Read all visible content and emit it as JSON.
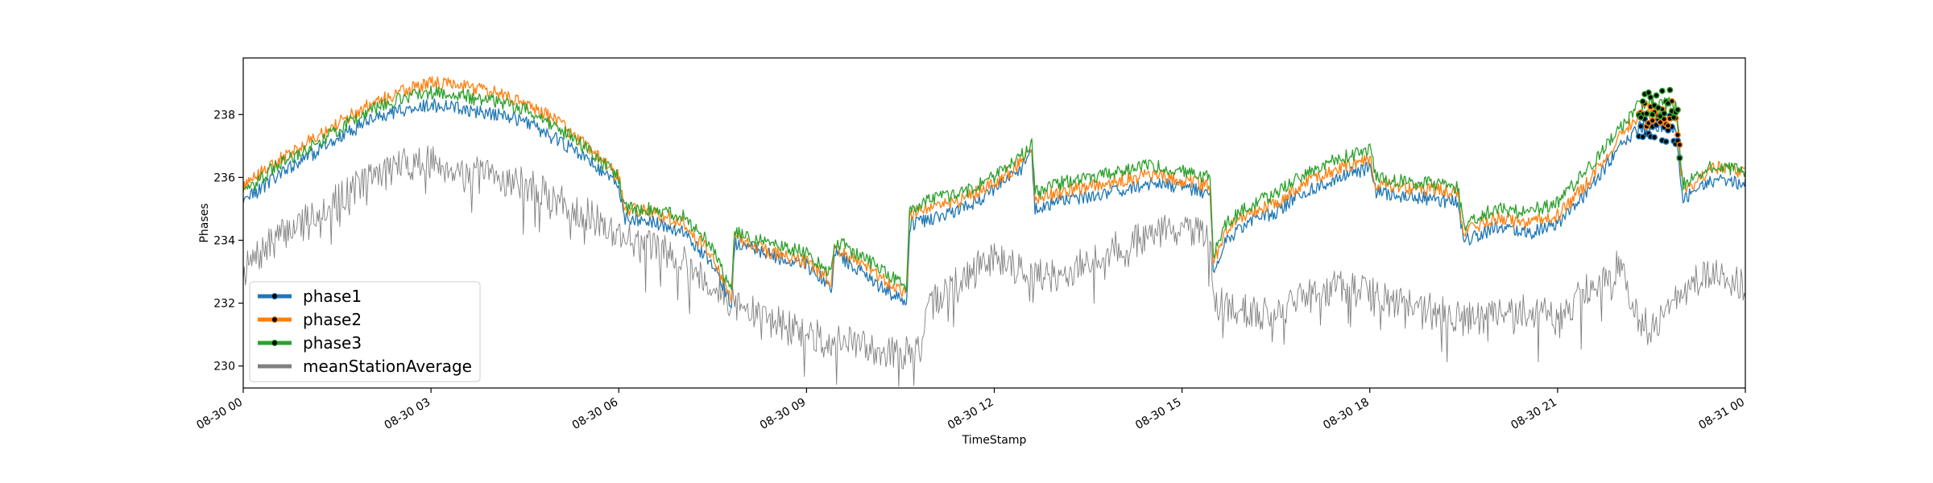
{
  "chart_data": {
    "type": "line",
    "xlabel": "TimeStamp",
    "ylabel": "Phases",
    "x_tick_labels": [
      "08-30 00",
      "08-30 03",
      "08-30 06",
      "08-30 09",
      "08-30 12",
      "08-30 15",
      "08-30 18",
      "08-30 21",
      "08-31 00"
    ],
    "y_ticks": [
      230,
      232,
      234,
      236,
      238
    ],
    "xlim_hours": [
      0,
      24
    ],
    "ylim": [
      229.3,
      239.8
    ],
    "grid": false,
    "legend_position": "lower-left",
    "series": [
      {
        "name": "phase1",
        "color": "#1f77b4",
        "hours": [
          0,
          0.5,
          1,
          1.5,
          2,
          2.5,
          3,
          3.5,
          4,
          4.5,
          5,
          5.5,
          6,
          6.1,
          6.5,
          7,
          7.5,
          7.8,
          7.85,
          8.2,
          8.6,
          9,
          9.4,
          9.45,
          9.8,
          10.2,
          10.6,
          10.65,
          11,
          11.5,
          12,
          12.5,
          12.6,
          12.65,
          13,
          13.5,
          14,
          14.5,
          15,
          15.45,
          15.5,
          15.7,
          16,
          16.5,
          17,
          17.5,
          18,
          18.1,
          18.5,
          19,
          19.4,
          19.5,
          19.8,
          20,
          20.5,
          21,
          21.5,
          22,
          22.3,
          22.6,
          22.9,
          23,
          23.5,
          24
        ],
        "values": [
          235.2,
          236,
          236.6,
          237.2,
          237.8,
          238.1,
          238.3,
          238.2,
          238.0,
          237.8,
          237.2,
          236.6,
          235.7,
          234.7,
          234.6,
          234.3,
          233.2,
          232.0,
          233.9,
          233.7,
          233.4,
          233.2,
          232.5,
          233.6,
          233.1,
          232.5,
          232.0,
          234.5,
          234.7,
          235.0,
          235.6,
          236.4,
          236.8,
          235.0,
          235.2,
          235.4,
          235.6,
          235.8,
          235.7,
          235.5,
          233.0,
          234.0,
          234.5,
          234.9,
          235.6,
          236.0,
          236.3,
          235.5,
          235.4,
          235.3,
          235.2,
          234.0,
          234.2,
          234.4,
          234.2,
          234.5,
          235.6,
          237.0,
          237.6,
          237.6,
          237.5,
          235.3,
          235.9,
          235.8
        ]
      },
      {
        "name": "phase2",
        "color": "#ff7f0e",
        "hours": [
          0,
          0.5,
          1,
          1.5,
          2,
          2.5,
          3,
          3.5,
          4,
          4.5,
          5,
          5.5,
          6,
          6.1,
          6.5,
          7,
          7.5,
          7.8,
          7.85,
          8.2,
          8.6,
          9,
          9.4,
          9.45,
          9.8,
          10.2,
          10.6,
          10.65,
          11,
          11.5,
          12,
          12.5,
          12.6,
          12.65,
          13,
          13.5,
          14,
          14.5,
          15,
          15.45,
          15.5,
          15.7,
          16,
          16.5,
          17,
          17.5,
          18,
          18.1,
          18.5,
          19,
          19.4,
          19.5,
          19.8,
          20,
          20.5,
          21,
          21.5,
          22,
          22.3,
          22.6,
          22.9,
          23,
          23.5,
          24
        ],
        "values": [
          235.7,
          236.5,
          237.1,
          237.7,
          238.3,
          238.7,
          239.0,
          238.9,
          238.7,
          238.4,
          237.8,
          237.0,
          236.0,
          235.0,
          234.9,
          234.6,
          233.5,
          232.1,
          234.1,
          233.8,
          233.5,
          233.3,
          232.7,
          233.8,
          233.3,
          232.8,
          232.3,
          234.8,
          235.0,
          235.3,
          235.8,
          236.6,
          237.0,
          235.3,
          235.5,
          235.7,
          235.9,
          236.1,
          235.9,
          235.7,
          233.3,
          234.3,
          234.8,
          235.2,
          235.9,
          236.3,
          236.6,
          235.8,
          235.7,
          235.6,
          235.5,
          234.3,
          234.5,
          234.7,
          234.5,
          234.8,
          235.9,
          237.3,
          238.0,
          238.1,
          238.0,
          235.6,
          236.3,
          236.2
        ]
      },
      {
        "name": "phase3",
        "color": "#2ca02c",
        "hours": [
          0,
          0.5,
          1,
          1.5,
          2,
          2.5,
          3,
          3.5,
          4,
          4.5,
          5,
          5.5,
          6,
          6.1,
          6.5,
          7,
          7.5,
          7.8,
          7.85,
          8.2,
          8.6,
          9,
          9.4,
          9.45,
          9.8,
          10.2,
          10.6,
          10.65,
          11,
          11.5,
          12,
          12.5,
          12.6,
          12.65,
          13,
          13.5,
          14,
          14.5,
          15,
          15.45,
          15.5,
          15.7,
          16,
          16.5,
          17,
          17.5,
          18,
          18.1,
          18.5,
          19,
          19.4,
          19.5,
          19.8,
          20,
          20.5,
          21,
          21.5,
          22,
          22.3,
          22.6,
          22.9,
          23,
          23.5,
          24
        ],
        "values": [
          235.5,
          236.3,
          236.9,
          237.5,
          238.1,
          238.5,
          238.7,
          238.6,
          238.4,
          238.2,
          237.6,
          236.9,
          236.0,
          235.0,
          235.0,
          234.8,
          233.8,
          232.3,
          234.3,
          234.0,
          233.8,
          233.6,
          232.9,
          234.0,
          233.6,
          233.1,
          232.5,
          235.0,
          235.3,
          235.5,
          236.0,
          236.8,
          237.2,
          235.5,
          235.8,
          236.0,
          236.2,
          236.4,
          236.2,
          236.0,
          233.5,
          234.5,
          235.0,
          235.5,
          236.2,
          236.6,
          236.9,
          236.0,
          235.9,
          235.8,
          235.7,
          234.5,
          234.8,
          235.0,
          234.9,
          235.2,
          236.3,
          237.6,
          238.3,
          238.4,
          238.3,
          235.8,
          236.4,
          236.2
        ]
      },
      {
        "name": "meanStationAverage",
        "color": "#808080",
        "hours": [
          0,
          0.5,
          1,
          1.5,
          2,
          2.5,
          3,
          3.5,
          4,
          4.5,
          5,
          5.5,
          6,
          6.5,
          7,
          7.5,
          8,
          8.5,
          9,
          9.5,
          10,
          10.5,
          10.8,
          11,
          11.5,
          12,
          12.5,
          13,
          13.5,
          14,
          14.5,
          15,
          15.45,
          15.5,
          16,
          16.5,
          17,
          17.5,
          18,
          18.5,
          19,
          19.5,
          20,
          20.5,
          21,
          21.5,
          22,
          22.3,
          22.6,
          23,
          23.5,
          24
        ],
        "values": [
          233.0,
          234.0,
          234.7,
          235.3,
          236.0,
          236.4,
          236.5,
          236.2,
          236.0,
          235.8,
          235.3,
          234.8,
          234.2,
          233.8,
          233.5,
          232.5,
          231.8,
          231.4,
          231.0,
          230.8,
          230.6,
          230.4,
          230.5,
          232.0,
          232.8,
          233.5,
          233.0,
          232.8,
          233.3,
          233.8,
          234.2,
          234.4,
          234.0,
          232.0,
          231.8,
          231.6,
          232.3,
          232.5,
          232.3,
          232.0,
          231.8,
          231.5,
          231.6,
          231.8,
          231.5,
          232.5,
          233.2,
          231.5,
          231.3,
          232.4,
          233.0,
          232.6
        ]
      }
    ]
  }
}
